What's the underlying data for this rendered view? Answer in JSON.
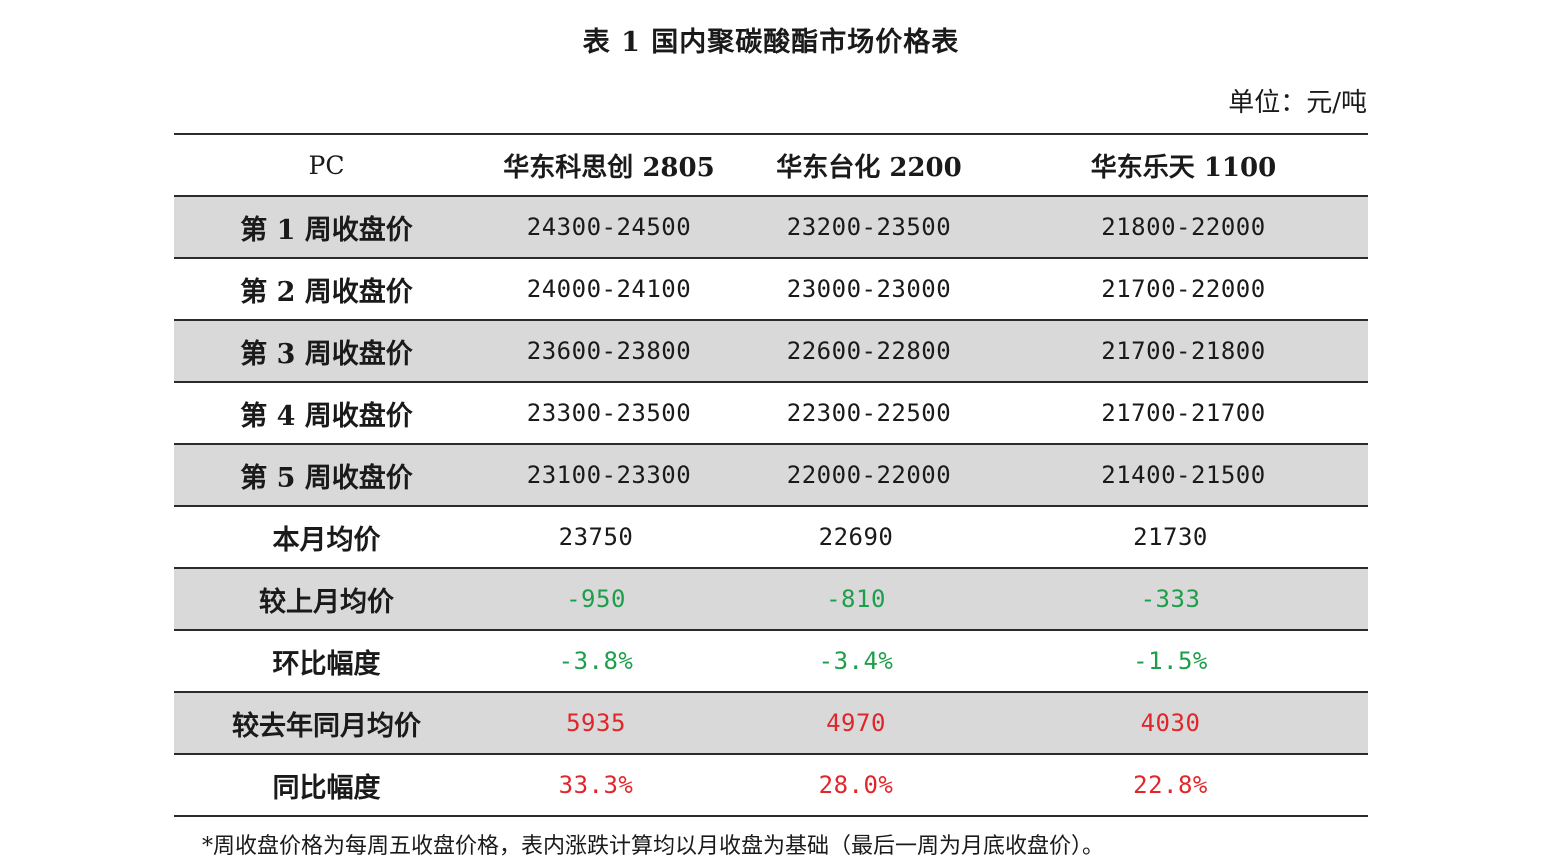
{
  "title": "表 1 国内聚碳酸酯市场价格表",
  "unit": "单位：元/吨",
  "columns": {
    "pc": "PC",
    "c1": "华东科思创 2805",
    "c2": "华东台化 2200",
    "c3": "华东乐天 1100"
  },
  "rows": [
    {
      "label": "第 1 周收盘价",
      "c1": "24300-24500",
      "c2": "23200-23500",
      "c3": "21800-22000"
    },
    {
      "label": "第 2 周收盘价",
      "c1": "24000-24100",
      "c2": "23000-23000",
      "c3": "21700-22000"
    },
    {
      "label": "第 3 周收盘价",
      "c1": "23600-23800",
      "c2": "22600-22800",
      "c3": "21700-21800"
    },
    {
      "label": "第 4 周收盘价",
      "c1": "23300-23500",
      "c2": "22300-22500",
      "c3": "21700-21700"
    },
    {
      "label": "第 5 周收盘价",
      "c1": "23100-23300",
      "c2": "22000-22000",
      "c3": "21400-21500"
    },
    {
      "label": "本月均价",
      "c1": "23750",
      "c2": "22690",
      "c3": "21730"
    },
    {
      "label": "较上月均价",
      "c1": "-950",
      "c2": "-810",
      "c3": "-333"
    },
    {
      "label": "环比幅度",
      "c1": "-3.8%",
      "c2": "-3.4%",
      "c3": "-1.5%"
    },
    {
      "label": "较去年同月均价",
      "c1": "5935",
      "c2": "4970",
      "c3": "4030"
    },
    {
      "label": "同比幅度",
      "c1": "33.3%",
      "c2": "28.0%",
      "c3": "22.8%"
    }
  ],
  "colors": {
    "decrease": "#1e9e4a",
    "increase": "#e0262b",
    "shade": "#d9d9d9"
  },
  "note": "*周收盘价格为每周五收盘价格，表内涨跌计算均以月收盘为基础（最后一周为月底收盘价）。"
}
